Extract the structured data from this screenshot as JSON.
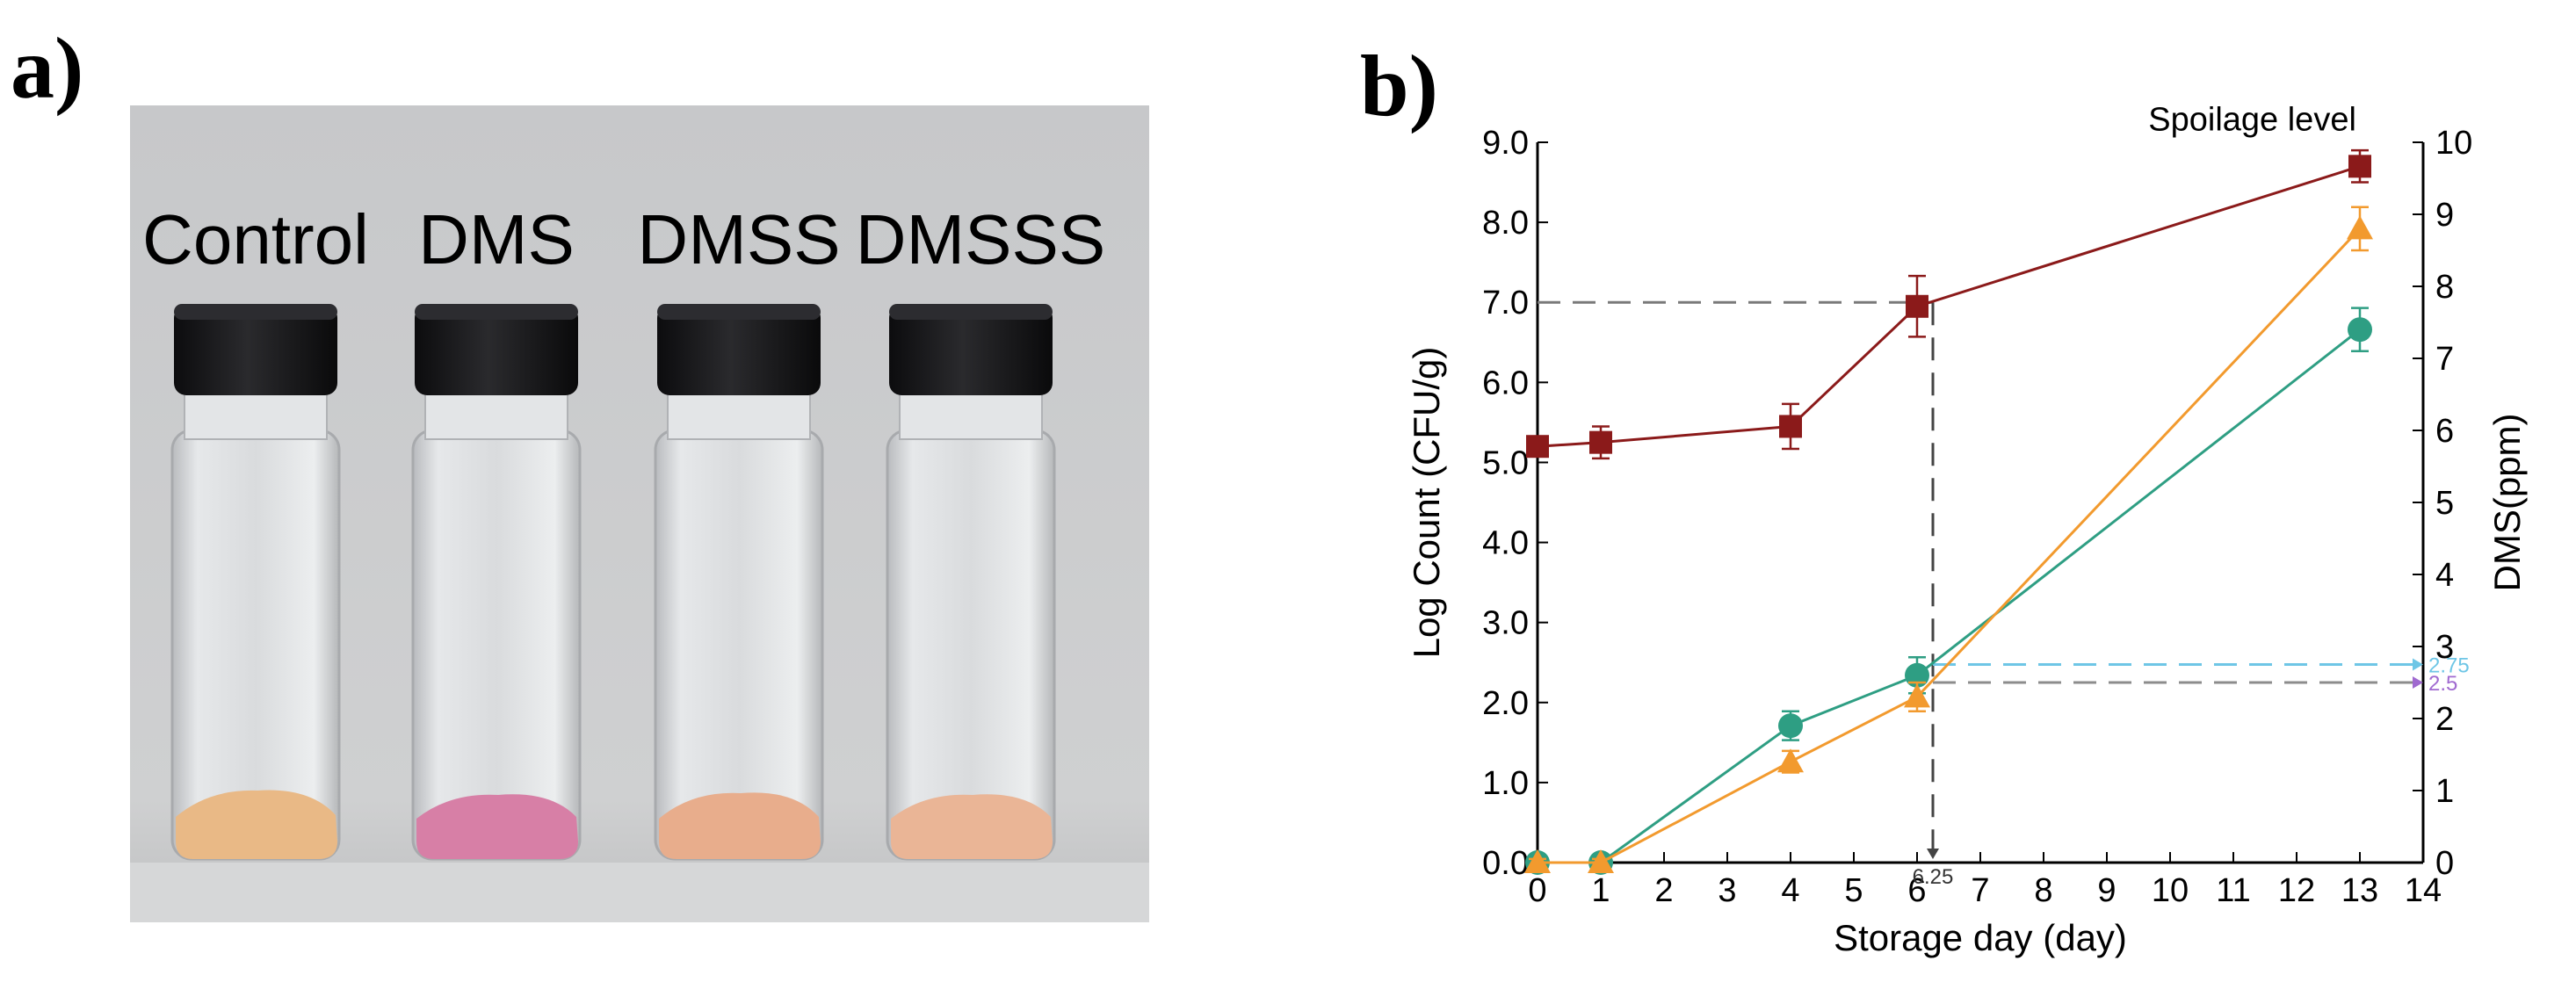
{
  "panel_a": {
    "label": "a)",
    "vial_labels": [
      "Control",
      "DMS",
      "DMSS",
      "DMSSS"
    ],
    "sample_colors": [
      "#e9b986",
      "#d77fa6",
      "#e8ad8c",
      "#eab596"
    ],
    "background_color": "#c9cacc",
    "cap_color": "#151517"
  },
  "panel_b": {
    "label": "b)"
  },
  "chart_data": {
    "type": "line",
    "xlabel": "Storage day (day)",
    "ylabel": "Log Count (CFU/g)",
    "y2label": "DMS(ppm)",
    "xlim": [
      0,
      14
    ],
    "ylim": [
      0,
      9
    ],
    "y2lim": [
      0,
      10
    ],
    "x_ticks": [
      "0",
      "1",
      "2",
      "3",
      "4",
      "5",
      "6",
      "7",
      "8",
      "9",
      "10",
      "11",
      "12",
      "13",
      "14"
    ],
    "y_ticks": [
      "0.0",
      "1.0",
      "2.0",
      "3.0",
      "4.0",
      "5.0",
      "6.0",
      "7.0",
      "8.0",
      "9.0"
    ],
    "y2_ticks": [
      "0",
      "1",
      "2",
      "3",
      "4",
      "5",
      "6",
      "7",
      "8",
      "9",
      "10"
    ],
    "grid": false,
    "legend": "none",
    "series": [
      {
        "axis": "left",
        "color": "#8b1a1a",
        "marker": "square",
        "points": [
          {
            "x": 0,
            "y": 5.2,
            "err": 0.1
          },
          {
            "x": 1,
            "y": 5.25,
            "err": 0.2
          },
          {
            "x": 4,
            "y": 5.45,
            "err": 0.28
          },
          {
            "x": 6,
            "y": 6.95,
            "err": 0.38
          },
          {
            "x": 13,
            "y": 8.7,
            "err": 0.2
          }
        ]
      },
      {
        "axis": "right",
        "color": "#2e9e83",
        "marker": "circle",
        "points": [
          {
            "x": 0,
            "y": 0.0,
            "err": 0.05
          },
          {
            "x": 1,
            "y": 0.0,
            "err": 0.05
          },
          {
            "x": 4,
            "y": 1.9,
            "err": 0.2
          },
          {
            "x": 6,
            "y": 2.6,
            "err": 0.25
          },
          {
            "x": 13,
            "y": 7.4,
            "err": 0.3
          }
        ]
      },
      {
        "axis": "right",
        "color": "#f29a2e",
        "marker": "triangle",
        "points": [
          {
            "x": 0,
            "y": 0.0,
            "err": 0.05
          },
          {
            "x": 1,
            "y": 0.0,
            "err": 0.05
          },
          {
            "x": 4,
            "y": 1.4,
            "err": 0.15
          },
          {
            "x": 6,
            "y": 2.3,
            "err": 0.2
          },
          {
            "x": 13,
            "y": 8.8,
            "err": 0.3
          }
        ]
      }
    ],
    "reference_lines": {
      "spoilage_level": {
        "y": 7.0,
        "x_end": 6.25,
        "color": "#7a7a7a"
      },
      "time_marker": {
        "x": 6.25,
        "label": "6.25",
        "color": "#444444"
      },
      "threshold_a": {
        "y2": 2.75,
        "x_start": 6.25,
        "label": "2.75",
        "color": "#6ec6e6"
      },
      "threshold_b": {
        "y2": 2.5,
        "x_start": 6.25,
        "label": "2.5",
        "color": "#a06ad0"
      }
    },
    "annotations": [
      {
        "text": "Spoilage level",
        "x": 11.3,
        "y": 9.15,
        "axis": "left"
      }
    ]
  }
}
